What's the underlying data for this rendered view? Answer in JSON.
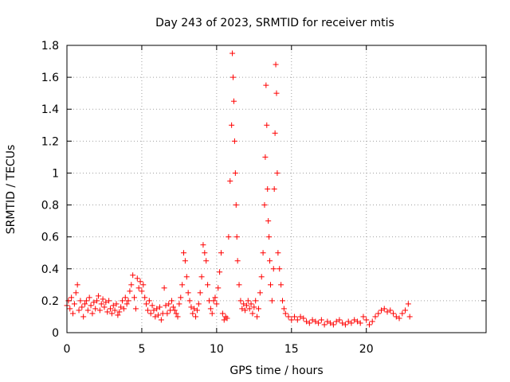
{
  "chart_data": {
    "type": "scatter",
    "title": "Day 243 of 2023, SRMTID for receiver mtis",
    "xlabel": "GPS time / hours",
    "ylabel": "SRMTID / TECUs",
    "xlim": [
      0,
      28
    ],
    "ylim": [
      0,
      1.8
    ],
    "xticks": [
      0,
      5,
      10,
      15,
      20
    ],
    "xtick_labels": [
      "0",
      "5",
      "10",
      "15",
      "20"
    ],
    "yticks": [
      0,
      0.2,
      0.4,
      0.6,
      0.8,
      1.0,
      1.2,
      1.4,
      1.6,
      1.8
    ],
    "ytick_labels": [
      "0",
      "0.2",
      "0.4",
      "0.6",
      "0.8",
      "1",
      "1.2",
      "1.4",
      "1.6",
      "1.8"
    ],
    "grid": true,
    "marker": "+",
    "marker_color": "#ff0000",
    "series": [
      {
        "name": "SRMTID",
        "points": [
          [
            0.0,
            0.17
          ],
          [
            0.1,
            0.2
          ],
          [
            0.2,
            0.15
          ],
          [
            0.3,
            0.22
          ],
          [
            0.4,
            0.12
          ],
          [
            0.5,
            0.18
          ],
          [
            0.6,
            0.25
          ],
          [
            0.7,
            0.3
          ],
          [
            0.8,
            0.14
          ],
          [
            0.9,
            0.2
          ],
          [
            1.0,
            0.16
          ],
          [
            1.1,
            0.1
          ],
          [
            1.2,
            0.18
          ],
          [
            1.3,
            0.2
          ],
          [
            1.4,
            0.14
          ],
          [
            1.5,
            0.22
          ],
          [
            1.6,
            0.17
          ],
          [
            1.7,
            0.12
          ],
          [
            1.8,
            0.19
          ],
          [
            1.9,
            0.15
          ],
          [
            2.0,
            0.2
          ],
          [
            2.1,
            0.23
          ],
          [
            2.2,
            0.14
          ],
          [
            2.3,
            0.18
          ],
          [
            2.4,
            0.21
          ],
          [
            2.5,
            0.16
          ],
          [
            2.6,
            0.19
          ],
          [
            2.7,
            0.13
          ],
          [
            2.8,
            0.2
          ],
          [
            2.9,
            0.15
          ],
          [
            3.0,
            0.12
          ],
          [
            3.1,
            0.17
          ],
          [
            3.2,
            0.14
          ],
          [
            3.3,
            0.18
          ],
          [
            3.4,
            0.11
          ],
          [
            3.5,
            0.13
          ],
          [
            3.6,
            0.16
          ],
          [
            3.7,
            0.2
          ],
          [
            3.8,
            0.15
          ],
          [
            3.9,
            0.22
          ],
          [
            4.0,
            0.18
          ],
          [
            4.1,
            0.2
          ],
          [
            4.2,
            0.26
          ],
          [
            4.3,
            0.3
          ],
          [
            4.4,
            0.36
          ],
          [
            4.5,
            0.22
          ],
          [
            4.6,
            0.15
          ],
          [
            4.7,
            0.34
          ],
          [
            4.8,
            0.28
          ],
          [
            4.9,
            0.32
          ],
          [
            5.0,
            0.26
          ],
          [
            5.1,
            0.3
          ],
          [
            5.2,
            0.22
          ],
          [
            5.3,
            0.18
          ],
          [
            5.4,
            0.14
          ],
          [
            5.5,
            0.2
          ],
          [
            5.6,
            0.12
          ],
          [
            5.7,
            0.17
          ],
          [
            5.8,
            0.14
          ],
          [
            5.9,
            0.1
          ],
          [
            6.0,
            0.15
          ],
          [
            6.1,
            0.11
          ],
          [
            6.2,
            0.16
          ],
          [
            6.3,
            0.08
          ],
          [
            6.4,
            0.12
          ],
          [
            6.5,
            0.28
          ],
          [
            6.6,
            0.17
          ],
          [
            6.7,
            0.12
          ],
          [
            6.8,
            0.18
          ],
          [
            6.9,
            0.14
          ],
          [
            7.0,
            0.2
          ],
          [
            7.1,
            0.16
          ],
          [
            7.2,
            0.14
          ],
          [
            7.3,
            0.12
          ],
          [
            7.4,
            0.1
          ],
          [
            7.5,
            0.18
          ],
          [
            7.6,
            0.22
          ],
          [
            7.7,
            0.3
          ],
          [
            7.8,
            0.5
          ],
          [
            7.9,
            0.45
          ],
          [
            8.0,
            0.35
          ],
          [
            8.1,
            0.25
          ],
          [
            8.2,
            0.2
          ],
          [
            8.3,
            0.16
          ],
          [
            8.4,
            0.12
          ],
          [
            8.5,
            0.15
          ],
          [
            8.6,
            0.1
          ],
          [
            8.7,
            0.14
          ],
          [
            8.8,
            0.18
          ],
          [
            8.9,
            0.25
          ],
          [
            9.0,
            0.35
          ],
          [
            9.1,
            0.55
          ],
          [
            9.2,
            0.5
          ],
          [
            9.3,
            0.45
          ],
          [
            9.4,
            0.3
          ],
          [
            9.5,
            0.2
          ],
          [
            9.6,
            0.15
          ],
          [
            9.7,
            0.12
          ],
          [
            9.8,
            0.2
          ],
          [
            9.9,
            0.22
          ],
          [
            10.0,
            0.18
          ],
          [
            10.1,
            0.28
          ],
          [
            10.2,
            0.38
          ],
          [
            10.3,
            0.5
          ],
          [
            10.4,
            0.12
          ],
          [
            10.5,
            0.08
          ],
          [
            10.6,
            0.1
          ],
          [
            10.7,
            0.09
          ],
          [
            10.8,
            0.6
          ],
          [
            10.9,
            0.95
          ],
          [
            11.0,
            1.3
          ],
          [
            11.05,
            1.75
          ],
          [
            11.1,
            1.6
          ],
          [
            11.15,
            1.45
          ],
          [
            11.2,
            1.2
          ],
          [
            11.25,
            1.0
          ],
          [
            11.3,
            0.8
          ],
          [
            11.35,
            0.6
          ],
          [
            11.4,
            0.45
          ],
          [
            11.5,
            0.3
          ],
          [
            11.6,
            0.2
          ],
          [
            11.7,
            0.15
          ],
          [
            11.8,
            0.18
          ],
          [
            11.9,
            0.14
          ],
          [
            12.0,
            0.17
          ],
          [
            12.1,
            0.2
          ],
          [
            12.2,
            0.15
          ],
          [
            12.3,
            0.18
          ],
          [
            12.4,
            0.12
          ],
          [
            12.5,
            0.16
          ],
          [
            12.6,
            0.2
          ],
          [
            12.7,
            0.1
          ],
          [
            12.8,
            0.15
          ],
          [
            12.9,
            0.25
          ],
          [
            13.0,
            0.35
          ],
          [
            13.1,
            0.5
          ],
          [
            13.2,
            0.8
          ],
          [
            13.25,
            1.1
          ],
          [
            13.3,
            1.55
          ],
          [
            13.35,
            1.3
          ],
          [
            13.4,
            0.9
          ],
          [
            13.45,
            0.7
          ],
          [
            13.5,
            0.6
          ],
          [
            13.55,
            0.45
          ],
          [
            13.6,
            0.3
          ],
          [
            13.7,
            0.2
          ],
          [
            13.8,
            0.4
          ],
          [
            13.85,
            0.9
          ],
          [
            13.9,
            1.25
          ],
          [
            13.95,
            1.68
          ],
          [
            14.0,
            1.5
          ],
          [
            14.05,
            1.0
          ],
          [
            14.1,
            0.5
          ],
          [
            14.2,
            0.4
          ],
          [
            14.3,
            0.3
          ],
          [
            14.4,
            0.2
          ],
          [
            14.5,
            0.15
          ],
          [
            14.6,
            0.12
          ],
          [
            14.8,
            0.1
          ],
          [
            15.0,
            0.08
          ],
          [
            15.2,
            0.1
          ],
          [
            15.4,
            0.08
          ],
          [
            15.6,
            0.1
          ],
          [
            15.8,
            0.09
          ],
          [
            16.0,
            0.07
          ],
          [
            16.2,
            0.06
          ],
          [
            16.4,
            0.08
          ],
          [
            16.6,
            0.07
          ],
          [
            16.8,
            0.06
          ],
          [
            17.0,
            0.08
          ],
          [
            17.2,
            0.05
          ],
          [
            17.4,
            0.07
          ],
          [
            17.6,
            0.06
          ],
          [
            17.8,
            0.05
          ],
          [
            18.0,
            0.07
          ],
          [
            18.2,
            0.08
          ],
          [
            18.4,
            0.06
          ],
          [
            18.6,
            0.05
          ],
          [
            18.8,
            0.07
          ],
          [
            19.0,
            0.06
          ],
          [
            19.2,
            0.08
          ],
          [
            19.4,
            0.07
          ],
          [
            19.6,
            0.06
          ],
          [
            19.8,
            0.1
          ],
          [
            20.0,
            0.08
          ],
          [
            20.2,
            0.05
          ],
          [
            20.4,
            0.07
          ],
          [
            20.6,
            0.1
          ],
          [
            20.8,
            0.12
          ],
          [
            21.0,
            0.14
          ],
          [
            21.2,
            0.15
          ],
          [
            21.4,
            0.13
          ],
          [
            21.6,
            0.14
          ],
          [
            21.8,
            0.12
          ],
          [
            22.0,
            0.1
          ],
          [
            22.2,
            0.09
          ],
          [
            22.4,
            0.12
          ],
          [
            22.6,
            0.14
          ],
          [
            22.8,
            0.18
          ],
          [
            22.9,
            0.1
          ]
        ]
      }
    ]
  }
}
